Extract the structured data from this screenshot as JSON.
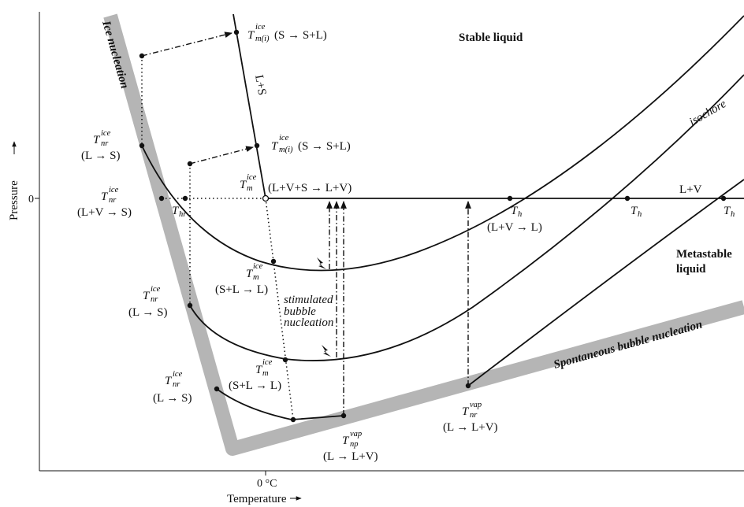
{
  "axes": {
    "x_title": "Temperature",
    "y_title": "Pressure",
    "x_tick": "0 °C",
    "y_tick": "0"
  },
  "regions": {
    "stable": "Stable liquid",
    "metastable_1": "Metastable",
    "metastable_2": "liquid",
    "ice_nucleation": "Ice nucleation",
    "bubble_nucleation": "Spontaneous bubble nucleation",
    "isochore": "isochore",
    "l_plus_s": "L+S",
    "l_plus_v": "L+V",
    "stimulated_1": "stimulated",
    "stimulated_2": "bubble",
    "stimulated_3": "nucleation"
  },
  "labels": {
    "tmi_top": {
      "base": "T",
      "sub": "m(i)",
      "sup": "ice",
      "rest": " (S → S+L)"
    },
    "tmi_mid": {
      "base": "T",
      "sub": "m(i)",
      "sup": "ice",
      "rest": "(S → S+L)"
    },
    "tnr_1": {
      "base": "T",
      "sub": "nr",
      "sup": "ice",
      "rest": "(L → S)"
    },
    "tnr_2": {
      "base": "T",
      "sub": "nr",
      "sup": "ice",
      "rest": "(L+V → S)"
    },
    "tnr_3": {
      "base": "T",
      "sub": "nr",
      "sup": "ice",
      "rest": "(L → S)"
    },
    "tnr_4": {
      "base": "T",
      "sub": "nr",
      "sup": "ice",
      "rest": "(L → S)"
    },
    "thr": {
      "base": "T",
      "sub": "hr"
    },
    "tm_triple": {
      "base": "T",
      "sub": "m",
      "sup": "ice",
      "rest": "(L+V+S → L+V)"
    },
    "tm_1": {
      "base": "T",
      "sub": "m",
      "sup": "ice",
      "rest": "(S+L → L)"
    },
    "tm_2": {
      "base": "T",
      "sub": "m",
      "sup": "ice",
      "rest": "(S+L → L)"
    },
    "th_1": {
      "base": "T",
      "sub": "h",
      "rest": "(L+V → L)"
    },
    "th_2": {
      "base": "T",
      "sub": "h"
    },
    "th_3": {
      "base": "T",
      "sub": "h"
    },
    "tnr_vap": {
      "base": "T",
      "sub": "nr",
      "sup": "vap",
      "rest": "(L → L+V)"
    },
    "tnp_vap": {
      "base": "T",
      "sub": "np",
      "sup": "vap",
      "rest": "(L → L+V)"
    }
  }
}
